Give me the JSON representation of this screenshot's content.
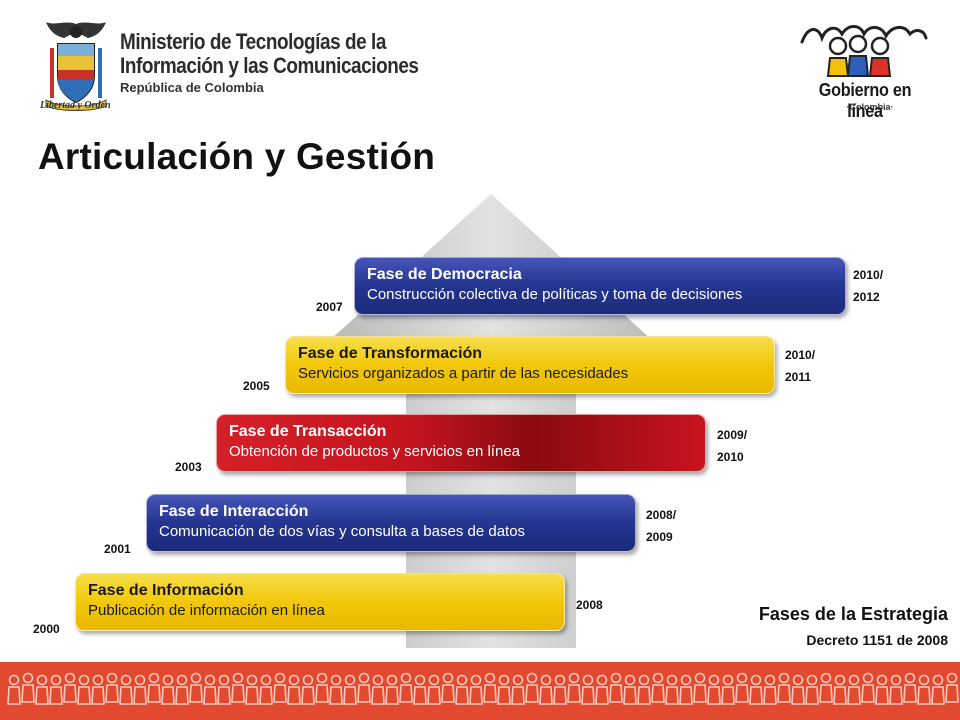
{
  "header": {
    "ministry_line1": "Ministerio de Tecnologías de la",
    "ministry_line2": "Información y las Comunicaciones",
    "ministry_sub": "República de Colombia",
    "motto": "Libertad y Orden",
    "gel_title": "Gobierno en línea",
    "gel_sub": "·Colombia·"
  },
  "title": "Articulación y Gestión",
  "phases": [
    {
      "title": "Fase de Democracia",
      "desc": "Construcción colectiva de políticas y toma de decisiones",
      "start": "2007",
      "end_line1": "2010/",
      "end_line2": "2012"
    },
    {
      "title": "Fase de Transformación",
      "desc": "Servicios organizados a partir de las necesidades",
      "start": "2005",
      "end_line1": "2010/",
      "end_line2": "2011"
    },
    {
      "title": "Fase de Transacción",
      "desc": "Obtención de productos y servicios en línea",
      "start": "2003",
      "end_line1": "2009/",
      "end_line2": "2010"
    },
    {
      "title": "Fase de Interacción",
      "desc": "Comunicación de dos vías y consulta a bases de datos",
      "start": "2001",
      "end_line1": "2008/",
      "end_line2": "2009"
    },
    {
      "title": "Fase de Información",
      "desc": "Publicación de información en línea",
      "start": "2000",
      "end_line1": "2008",
      "end_line2": ""
    }
  ],
  "strategy": {
    "title": "Fases de la Estrategia",
    "subtitle": "Decreto 1151 de 2008"
  },
  "colors": {
    "blue": "#243590",
    "yellow": "#f2c80a",
    "red": "#c3141e",
    "footer": "#e24a30"
  },
  "icons": {
    "ministry": "colombia-coat-of-arms-icon",
    "gel": "gobierno-en-linea-people-icon",
    "arrow": "up-arrow-icon"
  }
}
